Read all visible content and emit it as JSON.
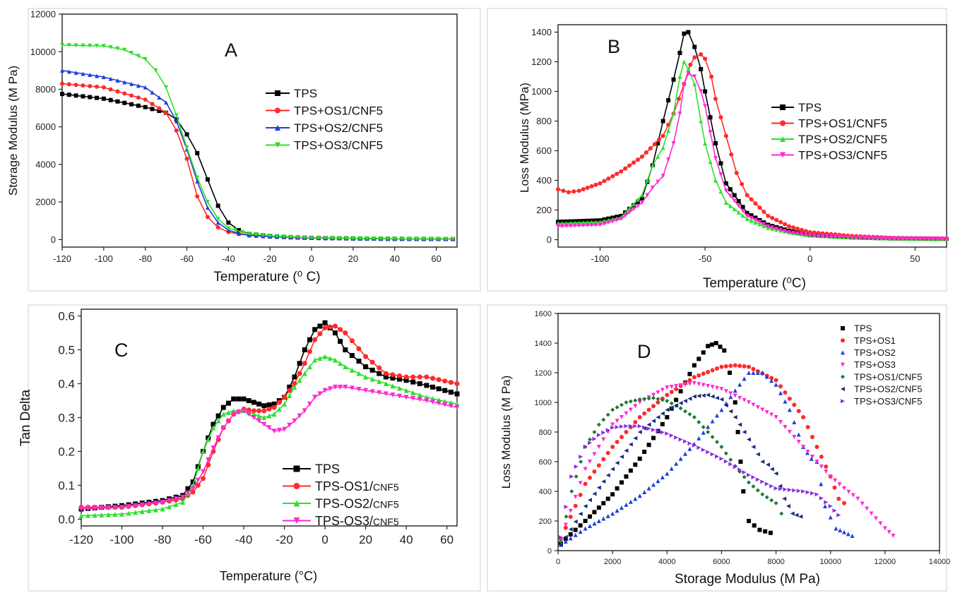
{
  "chart_data": [
    {
      "panel": "A",
      "type": "line",
      "xlabel": "Temperature (⁰ C)",
      "ylabel": "Storage Modulus (M Pa)",
      "xlim": [
        -120,
        70
      ],
      "ylim": [
        -400,
        12000
      ],
      "xticks": [
        -120,
        -100,
        -80,
        -60,
        -40,
        -20,
        0,
        20,
        40,
        60
      ],
      "yticks": [
        0,
        2000,
        4000,
        6000,
        8000,
        10000,
        12000
      ],
      "grid": false,
      "legend_position": "right",
      "series": [
        {
          "name": "TPS",
          "color": "#000000",
          "marker": "square",
          "x": [
            -120,
            -100,
            -80,
            -70,
            -65,
            -60,
            -55,
            -50,
            -45,
            -40,
            -35,
            -30,
            -20,
            -10,
            0,
            20,
            40,
            68
          ],
          "y": [
            7750,
            7500,
            7050,
            6750,
            6400,
            5600,
            4600,
            3200,
            1800,
            900,
            500,
            300,
            200,
            120,
            90,
            60,
            40,
            30
          ]
        },
        {
          "name": "TPS+OS1/CNF5",
          "color": "#ff2a2a",
          "marker": "circle",
          "x": [
            -120,
            -100,
            -80,
            -70,
            -65,
            -60,
            -55,
            -50,
            -45,
            -40,
            -35,
            -30,
            -20,
            -10,
            0,
            20,
            40,
            68
          ],
          "y": [
            8300,
            8100,
            7450,
            6750,
            5800,
            4300,
            2300,
            1200,
            650,
            400,
            300,
            220,
            160,
            120,
            90,
            60,
            40,
            30
          ]
        },
        {
          "name": "TPS+OS2/CNF5",
          "color": "#1f3fd9",
          "marker": "triangle-up",
          "x": [
            -120,
            -100,
            -80,
            -70,
            -65,
            -60,
            -55,
            -50,
            -45,
            -40,
            -35,
            -30,
            -20,
            -10,
            0,
            20,
            40,
            68
          ],
          "y": [
            9000,
            8650,
            8100,
            7300,
            6300,
            4800,
            3100,
            1700,
            900,
            500,
            320,
            230,
            160,
            120,
            90,
            60,
            40,
            30
          ]
        },
        {
          "name": "TPS+OS3/CNF5",
          "color": "#2ee02e",
          "marker": "triangle-down",
          "x": [
            -120,
            -100,
            -90,
            -80,
            -75,
            -70,
            -65,
            -60,
            -55,
            -50,
            -45,
            -40,
            -30,
            -20,
            -10,
            0,
            20,
            40,
            68
          ],
          "y": [
            10350,
            10300,
            10100,
            9600,
            9000,
            8100,
            6600,
            4900,
            3300,
            2000,
            1100,
            600,
            300,
            200,
            140,
            100,
            60,
            40,
            30
          ]
        }
      ]
    },
    {
      "panel": "B",
      "type": "line",
      "xlabel": "Temperature (⁰C)",
      "ylabel": "Loss Modulus (MPa)",
      "xlim": [
        -120,
        65
      ],
      "ylim": [
        -50,
        1450
      ],
      "xticks": [
        -100,
        -50,
        0,
        50
      ],
      "yticks": [
        0,
        200,
        400,
        600,
        800,
        1000,
        1200,
        1400
      ],
      "grid": false,
      "legend_position": "right",
      "series": [
        {
          "name": "TPS",
          "color": "#000000",
          "marker": "square",
          "x": [
            -120,
            -100,
            -90,
            -80,
            -75,
            -70,
            -65,
            -62,
            -60,
            -58,
            -55,
            -52,
            -50,
            -45,
            -40,
            -30,
            -20,
            -10,
            0,
            20,
            40,
            65
          ],
          "y": [
            120,
            130,
            160,
            280,
            500,
            800,
            1080,
            1260,
            1390,
            1400,
            1300,
            1150,
            1000,
            650,
            380,
            180,
            100,
            60,
            30,
            15,
            8,
            5
          ]
        },
        {
          "name": "TPS+OS1/CNF5",
          "color": "#ff2a2a",
          "marker": "circle",
          "x": [
            -120,
            -115,
            -110,
            -100,
            -90,
            -80,
            -70,
            -65,
            -60,
            -57,
            -55,
            -52,
            -50,
            -47,
            -45,
            -40,
            -35,
            -30,
            -20,
            -10,
            0,
            20,
            40,
            65
          ],
          "y": [
            340,
            320,
            330,
            380,
            460,
            560,
            700,
            850,
            1050,
            1180,
            1230,
            1250,
            1220,
            1100,
            950,
            700,
            450,
            300,
            160,
            90,
            50,
            25,
            12,
            8
          ]
        },
        {
          "name": "TPS+OS2/CNF5",
          "color": "#2ee02e",
          "marker": "triangle-up",
          "x": [
            -120,
            -100,
            -90,
            -80,
            -75,
            -70,
            -65,
            -62,
            -60,
            -58,
            -55,
            -52,
            -50,
            -45,
            -40,
            -30,
            -20,
            -10,
            0,
            20,
            40,
            65
          ],
          "y": [
            110,
            120,
            150,
            300,
            500,
            620,
            850,
            1100,
            1200,
            1150,
            1050,
            800,
            650,
            400,
            250,
            140,
            80,
            50,
            30,
            15,
            8,
            5
          ]
        },
        {
          "name": "TPS+OS3/CNF5",
          "color": "#ff2ad0",
          "marker": "triangle-down",
          "x": [
            -120,
            -100,
            -90,
            -80,
            -75,
            -70,
            -65,
            -62,
            -60,
            -58,
            -55,
            -52,
            -50,
            -45,
            -40,
            -30,
            -20,
            -10,
            0,
            20,
            40,
            65
          ],
          "y": [
            90,
            100,
            140,
            250,
            350,
            430,
            650,
            850,
            1050,
            1120,
            1100,
            1000,
            900,
            550,
            330,
            160,
            90,
            50,
            30,
            15,
            8,
            5
          ]
        }
      ]
    },
    {
      "panel": "C",
      "type": "line",
      "xlabel": "Temperature (°C)",
      "ylabel": "Tan Delta",
      "xlim": [
        -120,
        65
      ],
      "ylim": [
        -0.02,
        0.62
      ],
      "xticks": [
        -120,
        -100,
        -80,
        -60,
        -40,
        -20,
        0,
        20,
        40,
        60
      ],
      "yticks": [
        "0.0",
        "0.1",
        "0.2",
        "0.3",
        "0.4",
        "0.5",
        "0.6"
      ],
      "grid": false,
      "legend_position": "lower-right",
      "series": [
        {
          "name": "TPS",
          "label_main": "TPS",
          "label_small": "",
          "color": "#000000",
          "marker": "square",
          "x": [
            -120,
            -100,
            -80,
            -70,
            -65,
            -60,
            -55,
            -50,
            -45,
            -40,
            -35,
            -30,
            -25,
            -20,
            -15,
            -10,
            -5,
            0,
            5,
            10,
            20,
            30,
            40,
            50,
            65
          ],
          "y": [
            0.03,
            0.04,
            0.055,
            0.07,
            0.11,
            0.2,
            0.28,
            0.33,
            0.355,
            0.355,
            0.345,
            0.335,
            0.34,
            0.36,
            0.42,
            0.5,
            0.56,
            0.58,
            0.55,
            0.5,
            0.45,
            0.42,
            0.41,
            0.395,
            0.37
          ]
        },
        {
          "name": "TPS-OS1/CNF5",
          "label_main": "TPS-OS1/",
          "label_small": "CNF5",
          "color": "#ff2a2a",
          "marker": "circle",
          "x": [
            -120,
            -100,
            -80,
            -70,
            -65,
            -60,
            -55,
            -50,
            -45,
            -40,
            -35,
            -30,
            -25,
            -20,
            -15,
            -10,
            -5,
            0,
            5,
            10,
            20,
            30,
            40,
            50,
            65
          ],
          "y": [
            0.035,
            0.035,
            0.05,
            0.06,
            0.08,
            0.12,
            0.2,
            0.27,
            0.31,
            0.325,
            0.32,
            0.32,
            0.33,
            0.36,
            0.4,
            0.46,
            0.53,
            0.565,
            0.57,
            0.55,
            0.48,
            0.43,
            0.42,
            0.42,
            0.4
          ]
        },
        {
          "name": "TPS-OS2/CNF5",
          "label_main": "TPS-OS2/",
          "label_small": "CNF5",
          "color": "#2ee02e",
          "marker": "triangle-up",
          "x": [
            -120,
            -100,
            -80,
            -70,
            -65,
            -60,
            -55,
            -50,
            -45,
            -40,
            -35,
            -30,
            -25,
            -20,
            -15,
            -10,
            -5,
            0,
            5,
            10,
            20,
            30,
            40,
            50,
            65
          ],
          "y": [
            0.01,
            0.015,
            0.03,
            0.05,
            0.1,
            0.2,
            0.27,
            0.31,
            0.32,
            0.32,
            0.31,
            0.3,
            0.31,
            0.34,
            0.39,
            0.43,
            0.47,
            0.48,
            0.47,
            0.45,
            0.42,
            0.4,
            0.38,
            0.36,
            0.34
          ]
        },
        {
          "name": "TPS-OS3/CNF5",
          "label_main": "TPS-OS3/",
          "label_small": "CNF5",
          "color": "#ff2ad0",
          "marker": "triangle-down",
          "x": [
            -120,
            -100,
            -80,
            -70,
            -65,
            -60,
            -55,
            -50,
            -45,
            -40,
            -35,
            -30,
            -25,
            -20,
            -15,
            -10,
            -5,
            0,
            5,
            10,
            20,
            30,
            40,
            50,
            65
          ],
          "y": [
            0.03,
            0.035,
            0.05,
            0.065,
            0.09,
            0.14,
            0.21,
            0.27,
            0.31,
            0.32,
            0.3,
            0.28,
            0.26,
            0.265,
            0.29,
            0.32,
            0.36,
            0.38,
            0.39,
            0.39,
            0.38,
            0.37,
            0.36,
            0.35,
            0.33
          ]
        }
      ]
    },
    {
      "panel": "D",
      "type": "scatter",
      "xlabel": "Storage Modulus (M Pa)",
      "ylabel": "Loss Modulus (M Pa)",
      "xlim": [
        0,
        14000
      ],
      "ylim": [
        0,
        1600
      ],
      "xticks": [
        0,
        2000,
        4000,
        6000,
        8000,
        10000,
        12000,
        14000
      ],
      "yticks": [
        0,
        200,
        400,
        600,
        800,
        1000,
        1200,
        1400,
        1600
      ],
      "grid": false,
      "legend_position": "top-right",
      "series": [
        {
          "name": "TPS",
          "color": "#000000",
          "marker": "square",
          "x": [
            100,
            1000,
            2000,
            3000,
            4000,
            5000,
            5500,
            5800,
            6100,
            6300,
            6500,
            6600,
            6700,
            6800,
            7000,
            7400,
            7800
          ],
          "y": [
            50,
            200,
            380,
            620,
            900,
            1250,
            1380,
            1400,
            1350,
            1200,
            1000,
            800,
            600,
            400,
            200,
            140,
            120
          ]
        },
        {
          "name": "TPS+OS1",
          "color": "#ff2a2a",
          "marker": "circle",
          "x": [
            100,
            1000,
            2000,
            3000,
            4000,
            5000,
            6000,
            6500,
            7000,
            8000,
            9000,
            9500,
            10000,
            10300,
            10500
          ],
          "y": [
            80,
            450,
            700,
            900,
            1050,
            1170,
            1240,
            1250,
            1240,
            1150,
            900,
            700,
            500,
            350,
            320
          ]
        },
        {
          "name": "TPS+OS2",
          "color": "#1f3fd9",
          "marker": "triangle-up",
          "x": [
            100,
            1000,
            2000,
            3000,
            4000,
            5000,
            6000,
            6500,
            7000,
            7500,
            8000,
            8500,
            9000,
            9300,
            9500,
            9800,
            10200,
            10800
          ],
          "y": [
            40,
            150,
            250,
            370,
            520,
            720,
            950,
            1080,
            1200,
            1200,
            1120,
            950,
            700,
            620,
            600,
            300,
            150,
            100
          ]
        },
        {
          "name": "TPS+OS3",
          "color": "#ff2ad0",
          "marker": "triangle-down",
          "x": [
            100,
            1000,
            2000,
            3000,
            4000,
            5000,
            6000,
            7000,
            8000,
            9000,
            10000,
            10500,
            11000,
            11500,
            12000,
            12300
          ],
          "y": [
            80,
            550,
            850,
            1000,
            1100,
            1130,
            1090,
            1000,
            900,
            700,
            500,
            420,
            350,
            250,
            150,
            100
          ]
        },
        {
          "name": "TPS+OS1/CNF5",
          "color": "#1f7a2e",
          "marker": "diamond",
          "x": [
            100,
            500,
            1000,
            1500,
            2000,
            2500,
            3000,
            3500,
            4000,
            4500,
            5000,
            5500,
            6000,
            6500,
            7000,
            7500,
            8000,
            8200
          ],
          "y": [
            60,
            400,
            700,
            850,
            950,
            1000,
            1020,
            1030,
            1010,
            960,
            900,
            800,
            700,
            570,
            460,
            380,
            320,
            250
          ]
        },
        {
          "name": "TPS+OS2/CNF5",
          "color": "#1a2a80",
          "marker": "triangle-left",
          "x": [
            100,
            1000,
            2000,
            3000,
            4000,
            5000,
            5500,
            6000,
            6500,
            7000,
            7500,
            7700,
            8000,
            8300,
            8600,
            8900
          ],
          "y": [
            40,
            300,
            550,
            800,
            950,
            1040,
            1050,
            1020,
            900,
            750,
            600,
            580,
            520,
            350,
            250,
            230
          ]
        },
        {
          "name": "TPS+OS3/CNF5",
          "color": "#8a2be2",
          "marker": "triangle-right",
          "x": [
            100,
            500,
            1000,
            1500,
            2000,
            2500,
            3000,
            4000,
            5000,
            6000,
            7000,
            8000,
            9000,
            9500,
            10000,
            10300
          ],
          "y": [
            90,
            500,
            700,
            780,
            830,
            840,
            840,
            790,
            710,
            620,
            510,
            420,
            400,
            380,
            300,
            240
          ]
        }
      ]
    }
  ]
}
